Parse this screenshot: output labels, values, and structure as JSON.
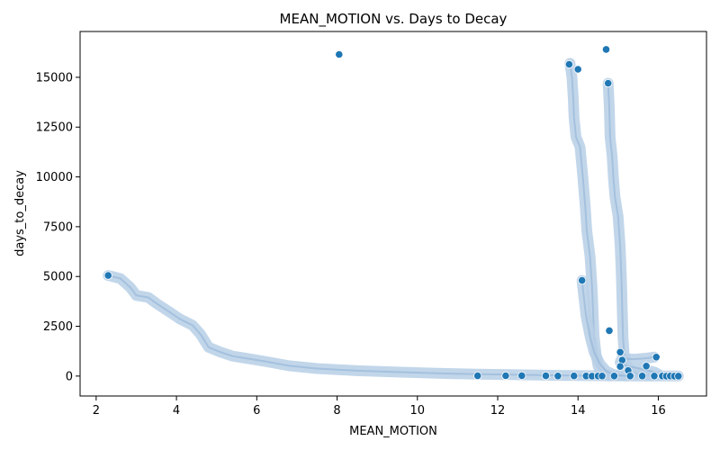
{
  "chart_data": {
    "type": "scatter",
    "title": "MEAN_MOTION vs. Days to Decay",
    "xlabel": "MEAN_MOTION",
    "ylabel": "days_to_decay",
    "xlim": [
      1.6,
      17.2
    ],
    "ylim": [
      -1000,
      17300
    ],
    "xticks": [
      2,
      4,
      6,
      8,
      10,
      12,
      14,
      16
    ],
    "yticks": [
      0,
      2500,
      5000,
      7500,
      10000,
      12500,
      15000
    ],
    "grid": false,
    "colors": {
      "point": "#1f77b4",
      "density_band": "#b7cfe6",
      "spine": "#000000"
    },
    "series": [
      {
        "name": "",
        "kind": "trajectory",
        "points": [
          [
            2.3,
            5050
          ],
          [
            2.6,
            4900
          ],
          [
            2.85,
            4450
          ],
          [
            3.0,
            4050
          ],
          [
            3.3,
            3950
          ],
          [
            3.5,
            3650
          ],
          [
            3.8,
            3250
          ],
          [
            4.1,
            2850
          ],
          [
            4.4,
            2550
          ],
          [
            4.6,
            2100
          ],
          [
            4.8,
            1450
          ],
          [
            5.1,
            1200
          ],
          [
            5.4,
            1000
          ],
          [
            5.8,
            870
          ],
          [
            6.2,
            740
          ],
          [
            6.8,
            520
          ],
          [
            7.5,
            380
          ],
          [
            8.5,
            270
          ],
          [
            9.5,
            200
          ],
          [
            10.5,
            140
          ],
          [
            11.5,
            95
          ],
          [
            12.5,
            65
          ],
          [
            13.5,
            35
          ],
          [
            14.5,
            15
          ],
          [
            15.5,
            6
          ],
          [
            16.5,
            2
          ]
        ]
      },
      {
        "name": "",
        "kind": "trajectory",
        "points": [
          [
            13.8,
            15700
          ],
          [
            13.85,
            15000
          ],
          [
            13.88,
            14000
          ],
          [
            13.9,
            13000
          ],
          [
            13.95,
            12000
          ],
          [
            14.05,
            11500
          ],
          [
            14.12,
            10000
          ],
          [
            14.18,
            8500
          ],
          [
            14.22,
            7300
          ],
          [
            14.3,
            6000
          ],
          [
            14.35,
            4500
          ],
          [
            14.38,
            3000
          ],
          [
            14.4,
            2000
          ],
          [
            14.45,
            1100
          ],
          [
            14.5,
            500
          ],
          [
            14.6,
            150
          ],
          [
            14.8,
            20
          ]
        ]
      },
      {
        "name": "",
        "kind": "trajectory",
        "points": [
          [
            14.1,
            4800
          ],
          [
            14.15,
            3900
          ],
          [
            14.2,
            3000
          ],
          [
            14.3,
            2000
          ],
          [
            14.4,
            1200
          ],
          [
            14.55,
            600
          ],
          [
            14.7,
            250
          ],
          [
            14.9,
            60
          ],
          [
            15.2,
            10
          ]
        ]
      },
      {
        "name": "",
        "kind": "trajectory",
        "points": [
          [
            14.75,
            14700
          ],
          [
            14.78,
            13500
          ],
          [
            14.8,
            12000
          ],
          [
            14.85,
            11000
          ],
          [
            14.88,
            10000
          ],
          [
            14.92,
            9000
          ],
          [
            15.0,
            8000
          ],
          [
            15.05,
            6500
          ],
          [
            15.08,
            5000
          ],
          [
            15.1,
            3500
          ],
          [
            15.12,
            2000
          ],
          [
            15.15,
            1100
          ],
          [
            15.2,
            600
          ],
          [
            15.3,
            300
          ],
          [
            15.5,
            120
          ],
          [
            15.8,
            40
          ]
        ]
      },
      {
        "name": "",
        "kind": "trajectory",
        "points": [
          [
            15.9,
            950
          ],
          [
            15.7,
            900
          ],
          [
            15.4,
            850
          ],
          [
            15.2,
            870
          ],
          [
            15.1,
            900
          ],
          [
            15.05,
            700
          ],
          [
            15.2,
            500
          ],
          [
            15.5,
            400
          ],
          [
            15.7,
            300
          ],
          [
            15.9,
            200
          ],
          [
            16.0,
            100
          ]
        ]
      },
      {
        "name": "",
        "kind": "markers",
        "points": [
          [
            2.3,
            5050
          ],
          [
            8.05,
            16150
          ],
          [
            13.78,
            15650
          ],
          [
            14.0,
            15400
          ],
          [
            14.7,
            16400
          ],
          [
            14.75,
            14700
          ],
          [
            14.1,
            4800
          ],
          [
            14.78,
            2280
          ],
          [
            15.05,
            1200
          ],
          [
            15.1,
            800
          ],
          [
            15.05,
            480
          ],
          [
            15.25,
            280
          ],
          [
            15.7,
            500
          ],
          [
            15.95,
            950
          ],
          [
            11.5,
            10
          ],
          [
            12.2,
            15
          ],
          [
            12.6,
            20
          ],
          [
            13.2,
            10
          ],
          [
            13.5,
            5
          ],
          [
            13.9,
            8
          ],
          [
            14.2,
            5
          ],
          [
            14.35,
            0
          ],
          [
            14.5,
            2
          ],
          [
            14.6,
            1
          ],
          [
            14.9,
            5
          ],
          [
            15.3,
            3
          ],
          [
            15.6,
            2
          ],
          [
            15.9,
            1
          ],
          [
            16.1,
            2
          ],
          [
            16.2,
            0
          ],
          [
            16.3,
            1
          ],
          [
            16.4,
            0
          ],
          [
            16.5,
            0
          ]
        ]
      }
    ]
  }
}
